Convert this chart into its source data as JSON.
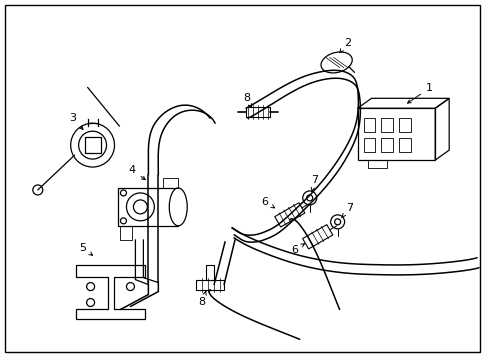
{
  "background_color": "#ffffff",
  "line_color": "#000000",
  "fig_width": 4.85,
  "fig_height": 3.57,
  "dpi": 100
}
